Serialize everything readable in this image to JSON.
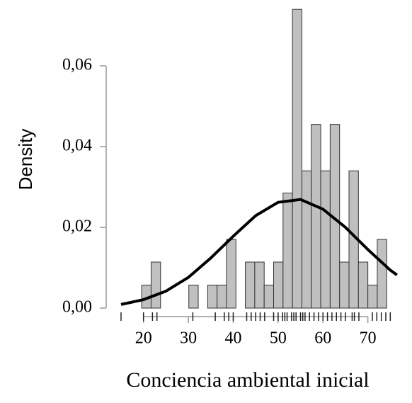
{
  "chart_data": {
    "type": "histogram",
    "x_label": "Conciencia ambiental inicial",
    "y_label": "Density",
    "bins": [
      19.6,
      21.7,
      23.8,
      25.9,
      28.0,
      30.1,
      32.2,
      34.3,
      36.4,
      38.5,
      40.6,
      42.7,
      44.8,
      46.9,
      49.0,
      51.1,
      53.2,
      55.3,
      57.4,
      59.5,
      61.6,
      63.7,
      65.8,
      67.9,
      70.0,
      72.1,
      74.2
    ],
    "values": [
      0.0057,
      0.0114,
      0,
      0,
      0,
      0.0057,
      0,
      0.0057,
      0.0057,
      0.017,
      0,
      0.0114,
      0.0114,
      0.0057,
      0.0114,
      0.0285,
      0.074,
      0.034,
      0.0455,
      0.034,
      0.0455,
      0.0114,
      0.034,
      0.0114,
      0.0057,
      0.017
    ],
    "color": "#c0c0c0",
    "curve": {
      "x": [
        15,
        20,
        25,
        30,
        35,
        40,
        45,
        50,
        55,
        60,
        65,
        70,
        75,
        76.5
      ],
      "values": [
        0.0009,
        0.0021,
        0.0042,
        0.0076,
        0.0124,
        0.0178,
        0.0229,
        0.0262,
        0.0269,
        0.0245,
        0.02,
        0.0145,
        0.0094,
        0.0082
      ],
      "color": "#000000"
    },
    "rug": [
      15,
      20,
      22,
      23,
      31,
      36,
      38,
      39,
      40,
      43,
      44,
      45,
      46,
      47,
      49,
      50,
      51,
      51.5,
      52,
      53,
      53.5,
      54,
      55,
      55.5,
      56,
      57,
      58,
      59,
      60,
      61,
      62,
      63,
      64,
      65,
      66.5,
      67,
      68,
      71,
      72,
      73,
      74,
      75
    ],
    "xlim": [
      15,
      77
    ],
    "ylim": [
      0,
      0.075
    ],
    "xticks": [
      20,
      30,
      40,
      50,
      60,
      70
    ],
    "yticks": [
      {
        "value": 0,
        "label": "0,00"
      },
      {
        "value": 0.02,
        "label": "0,02"
      },
      {
        "value": 0.04,
        "label": "0,04"
      },
      {
        "value": 0.06,
        "label": "0,06"
      }
    ]
  }
}
